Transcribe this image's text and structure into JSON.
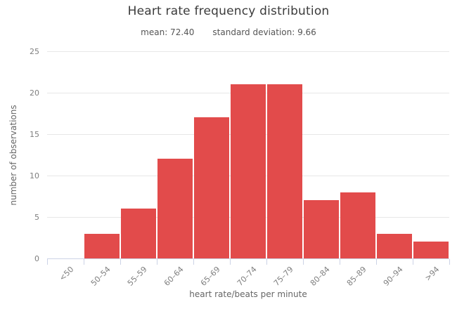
{
  "chart_data": {
    "type": "bar",
    "title": "Heart rate frequency distribution",
    "subtitle": {
      "mean_label": "mean: 72.40",
      "std_label": "standard deviation: 9.66"
    },
    "stats": {
      "mean": 72.4,
      "standard_deviation": 9.66
    },
    "categories": [
      "<50",
      "50–54",
      "55–59",
      "60–64",
      "65–69",
      "70–74",
      "75–79",
      "80–84",
      "85–89",
      "90–94",
      ">94"
    ],
    "values": [
      0,
      3,
      6,
      12,
      17,
      21,
      21,
      7,
      8,
      3,
      2
    ],
    "xlabel": "heart rate/beats per minute",
    "ylabel": "number of observations",
    "ylim": [
      0,
      25
    ],
    "yticks": [
      0,
      5,
      10,
      15,
      20,
      25
    ],
    "grid": true,
    "legend": "none",
    "colors": {
      "bar": "#e24b4b",
      "gridline": "#e7e7e7",
      "axis": "#ccd3e6",
      "title": "#3b3b3b",
      "subtitle": "#555555",
      "tick_label": "#7f7f7f",
      "axis_title": "#666666"
    }
  }
}
